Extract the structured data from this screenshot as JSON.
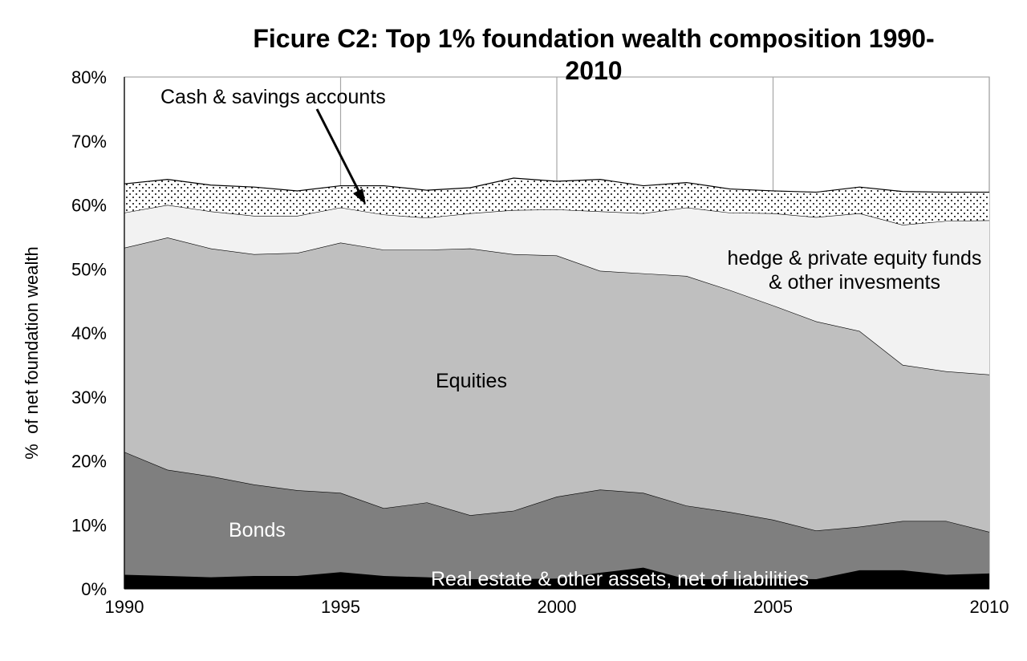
{
  "chart_data": {
    "type": "area",
    "title": "Ficure C2: Top 1% foundation wealth composition 1990-2010",
    "title_lines": [
      "Ficure C2: Top 1% foundation wealth composition 1990-",
      "2010"
    ],
    "ylabel": "%  of net foundation wealth",
    "xlabel": "",
    "ylim": [
      0,
      80
    ],
    "xlim": [
      1990,
      2010
    ],
    "y_ticks": [
      "0%",
      "10%",
      "20%",
      "30%",
      "40%",
      "50%",
      "60%",
      "70%",
      "80%"
    ],
    "x_ticks": [
      "1990",
      "1995",
      "2000",
      "2005",
      "2010"
    ],
    "grid": "vertical",
    "stacked": true,
    "x": [
      1990,
      1991,
      1992,
      1993,
      1994,
      1995,
      1996,
      1997,
      1998,
      1999,
      2000,
      2001,
      2002,
      2003,
      2004,
      2005,
      2006,
      2007,
      2008,
      2009,
      2010
    ],
    "series": [
      {
        "name": "Real estate & other assets, net of liabilities",
        "color": "#000000",
        "values": [
          2.2,
          2.0,
          1.8,
          2.0,
          2.0,
          2.6,
          2.0,
          1.8,
          1.5,
          1.5,
          1.6,
          2.5,
          3.3,
          1.5,
          1.5,
          1.6,
          1.5,
          2.9,
          2.9,
          2.2,
          2.4
        ]
      },
      {
        "name": "Bonds",
        "color": "#7f7f7f",
        "values": [
          19.2,
          16.6,
          15.8,
          14.3,
          13.4,
          12.4,
          10.6,
          11.7,
          10.0,
          10.7,
          12.8,
          13.0,
          11.7,
          11.5,
          10.5,
          9.2,
          7.6,
          6.8,
          7.7,
          8.4,
          6.5
        ]
      },
      {
        "name": "Equities",
        "color": "#bfbfbf",
        "values": [
          31.9,
          36.3,
          35.6,
          36.0,
          37.1,
          39.1,
          40.4,
          39.5,
          41.7,
          40.1,
          37.7,
          34.2,
          34.3,
          35.9,
          34.7,
          33.5,
          32.7,
          30.6,
          24.4,
          23.4,
          24.6
        ]
      },
      {
        "name": "hedge & private equity funds & other invesments",
        "color": "#f2f2f2",
        "values": [
          5.5,
          5.1,
          5.8,
          6.0,
          5.8,
          5.5,
          5.5,
          5.0,
          5.5,
          6.9,
          7.2,
          9.3,
          9.4,
          10.7,
          12.1,
          14.4,
          16.3,
          18.4,
          21.9,
          23.5,
          24.1
        ]
      },
      {
        "name": "Cash & savings accounts",
        "color": "#ffffff",
        "pattern": "dots",
        "values": [
          4.5,
          4.0,
          4.1,
          4.5,
          3.9,
          3.4,
          4.5,
          4.3,
          4.0,
          5.0,
          4.4,
          5.0,
          4.3,
          3.9,
          3.7,
          3.5,
          3.9,
          4.1,
          5.2,
          4.5,
          4.4
        ]
      }
    ],
    "annotations": {
      "cash": "Cash & savings accounts",
      "hedge_1": "hedge & private equity funds",
      "hedge_2": "& other invesments",
      "equities": "Equities",
      "bonds": "Bonds",
      "real_estate": "Real estate & other assets, net of liabilities"
    }
  }
}
